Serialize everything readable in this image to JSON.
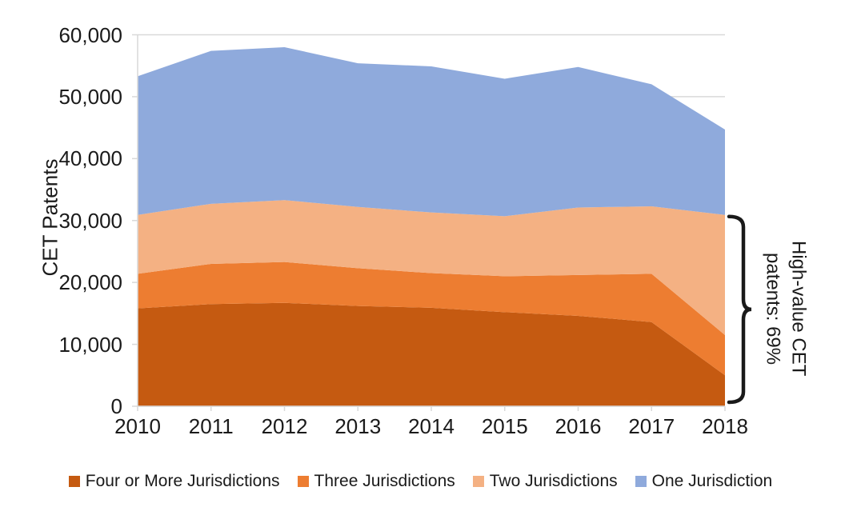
{
  "figure": {
    "background": "#FFFFFF",
    "text_color": "#1A1A1A",
    "axis_color": "#D9D9D9",
    "grid_color": "#D9D9D9",
    "brace_color": "#1A1A1A"
  },
  "chart_data": {
    "type": "area",
    "stacked": true,
    "title": "",
    "xlabel": "",
    "ylabel": "CET Patents",
    "ylim": [
      0,
      60000
    ],
    "yticks": [
      0,
      10000,
      20000,
      30000,
      40000,
      50000,
      60000
    ],
    "ytick_labels": [
      "0",
      "10,000",
      "20,000",
      "30,000",
      "40,000",
      "50,000",
      "60,000"
    ],
    "categories": [
      "2010",
      "2011",
      "2012",
      "2013",
      "2014",
      "2015",
      "2016",
      "2017",
      "2018"
    ],
    "grid": "horizontal",
    "legend_position": "bottom",
    "series": [
      {
        "name": "Four or More Jurisdictions",
        "color": "#C55A11",
        "values": [
          15800,
          16500,
          16700,
          16200,
          15900,
          15200,
          14600,
          13600,
          5000
        ]
      },
      {
        "name": "Three Jurisdictions",
        "color": "#ED7D31",
        "values": [
          5600,
          6500,
          6600,
          6100,
          5600,
          5800,
          6600,
          7800,
          6500
        ]
      },
      {
        "name": "Two Jurisdictions",
        "color": "#F4B183",
        "values": [
          9500,
          9700,
          10000,
          9900,
          9800,
          9700,
          10900,
          10900,
          19400
        ]
      },
      {
        "name": "One Jurisdiction",
        "color": "#8FAADC",
        "values": [
          22400,
          24700,
          24700,
          23200,
          23600,
          22200,
          22700,
          19700,
          13800
        ]
      }
    ],
    "totals": [
      53300,
      57400,
      58000,
      55400,
      54900,
      52900,
      54800,
      52000,
      44700
    ],
    "annotation": {
      "line1": "High-value CET",
      "line2": "patents: 69%",
      "brace_from_value": 30900,
      "brace_to_value": 0
    }
  }
}
